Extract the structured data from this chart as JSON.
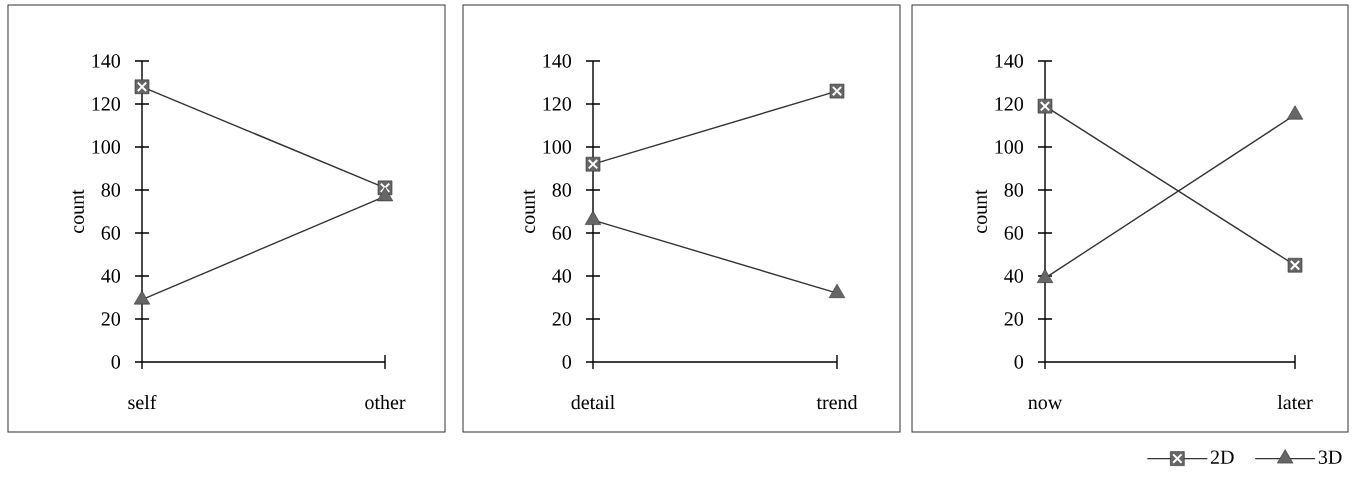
{
  "chart_data": [
    {
      "type": "line",
      "categories": [
        "self",
        "other"
      ],
      "ylabel": "count",
      "ylim": [
        0,
        140
      ],
      "yticks": [
        0,
        20,
        40,
        60,
        80,
        100,
        120,
        140
      ],
      "series": [
        {
          "color": "#333333",
          "marker": "square",
          "values": [
            128,
            81
          ]
        },
        {
          "color": "#333333",
          "marker": "triangle",
          "values": [
            29,
            77
          ]
        }
      ]
    },
    {
      "type": "line",
      "categories": [
        "detail",
        "trend"
      ],
      "ylabel": "count",
      "ylim": [
        0,
        140
      ],
      "yticks": [
        0,
        20,
        40,
        60,
        80,
        100,
        120,
        140
      ],
      "series": [
        {
          "color": "#333333",
          "marker": "square",
          "values": [
            92,
            126
          ]
        },
        {
          "color": "#333333",
          "marker": "triangle",
          "values": [
            66,
            32
          ]
        }
      ]
    },
    {
      "type": "line",
      "categories": [
        "now",
        "later"
      ],
      "ylabel": "count",
      "ylim": [
        0,
        140
      ],
      "yticks": [
        0,
        20,
        40,
        60,
        80,
        100,
        120,
        140
      ],
      "legend": "bottom right",
      "series": [
        {
          "name": "2D",
          "color": "#333333",
          "marker": "square",
          "values": [
            119,
            45
          ]
        },
        {
          "name": "3D",
          "color": "#333333",
          "marker": "triangle",
          "values": [
            39,
            115
          ]
        }
      ]
    }
  ]
}
